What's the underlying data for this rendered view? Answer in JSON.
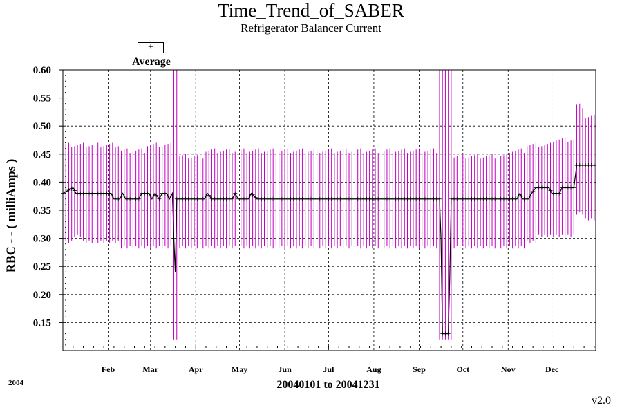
{
  "chart_data": {
    "type": "line",
    "title": "Time_Trend_of_SABER",
    "subtitle": "Refrigerator Balancer Current",
    "xlabel": "20040101 to 20041231",
    "ylabel": "RBC  - - ( milliAmps )",
    "year_label": "2004",
    "version": "v2.0",
    "legend": [
      {
        "name": "Average",
        "marker": "+",
        "placement": "top-left"
      }
    ],
    "ylim": [
      0.1,
      0.6
    ],
    "y_ticks": [
      "0.15",
      "0.20",
      "0.25",
      "0.30",
      "0.35",
      "0.40",
      "0.45",
      "0.50",
      "0.55",
      "0.60"
    ],
    "x_day_range": [
      1,
      366
    ],
    "x_ticks": [
      {
        "label": "Feb",
        "day": 32
      },
      {
        "label": "Mar",
        "day": 61
      },
      {
        "label": "Apr",
        "day": 92
      },
      {
        "label": "May",
        "day": 122
      },
      {
        "label": "Jun",
        "day": 153
      },
      {
        "label": "Jul",
        "day": 183
      },
      {
        "label": "Aug",
        "day": 214
      },
      {
        "label": "Sep",
        "day": 245
      },
      {
        "label": "Oct",
        "day": 275
      },
      {
        "label": "Nov",
        "day": 306
      },
      {
        "label": "Dec",
        "day": 336
      }
    ],
    "grid": true,
    "colors": {
      "range": "#c000c0",
      "average": "#000000",
      "grid": "#000000"
    },
    "series": [
      {
        "name": "Average",
        "points": [
          [
            1,
            0.38
          ],
          [
            8,
            0.39
          ],
          [
            10,
            0.38
          ],
          [
            34,
            0.38
          ],
          [
            36,
            0.37
          ],
          [
            40,
            0.37
          ],
          [
            42,
            0.38
          ],
          [
            44,
            0.37
          ],
          [
            53,
            0.37
          ],
          [
            55,
            0.38
          ],
          [
            60,
            0.38
          ],
          [
            62,
            0.37
          ],
          [
            64,
            0.38
          ],
          [
            67,
            0.37
          ],
          [
            69,
            0.38
          ],
          [
            72,
            0.38
          ],
          [
            74,
            0.37
          ],
          [
            76,
            0.38
          ],
          [
            77,
            0.3
          ],
          [
            78,
            0.24
          ],
          [
            79,
            0.37
          ],
          [
            98,
            0.37
          ],
          [
            100,
            0.38
          ],
          [
            103,
            0.37
          ],
          [
            117,
            0.37
          ],
          [
            119,
            0.38
          ],
          [
            121,
            0.37
          ],
          [
            128,
            0.37
          ],
          [
            130,
            0.38
          ],
          [
            134,
            0.37
          ],
          [
            259,
            0.37
          ],
          [
            260,
            0.3
          ],
          [
            261,
            0.13
          ],
          [
            265,
            0.13
          ],
          [
            266,
            0.23
          ],
          [
            267,
            0.37
          ],
          [
            312,
            0.37
          ],
          [
            314,
            0.38
          ],
          [
            316,
            0.37
          ],
          [
            320,
            0.37
          ],
          [
            322,
            0.38
          ],
          [
            325,
            0.39
          ],
          [
            334,
            0.39
          ],
          [
            336,
            0.38
          ],
          [
            341,
            0.38
          ],
          [
            343,
            0.39
          ],
          [
            351,
            0.39
          ],
          [
            353,
            0.43
          ],
          [
            366,
            0.43
          ]
        ]
      },
      {
        "name": "Range",
        "min_max_periods": [
          {
            "from": 1,
            "to": 3,
            "min": 0.3,
            "max": 0.47
          },
          {
            "from": 3,
            "to": 8,
            "min": 0.29,
            "max": 0.47
          },
          {
            "from": 8,
            "to": 14,
            "min": 0.3,
            "max": 0.47
          },
          {
            "from": 14,
            "to": 25,
            "min": 0.29,
            "max": 0.47
          },
          {
            "from": 25,
            "to": 40,
            "min": 0.29,
            "max": 0.47
          },
          {
            "from": 40,
            "to": 58,
            "min": 0.28,
            "max": 0.46
          },
          {
            "from": 58,
            "to": 76,
            "min": 0.28,
            "max": 0.47
          },
          {
            "from": 76,
            "to": 80,
            "min": 0.12,
            "max": 0.6
          },
          {
            "from": 80,
            "to": 98,
            "min": 0.28,
            "max": 0.45
          },
          {
            "from": 98,
            "to": 108,
            "min": 0.28,
            "max": 0.46
          },
          {
            "from": 108,
            "to": 140,
            "min": 0.28,
            "max": 0.46
          },
          {
            "from": 140,
            "to": 200,
            "min": 0.28,
            "max": 0.46
          },
          {
            "from": 200,
            "to": 258,
            "min": 0.28,
            "max": 0.46
          },
          {
            "from": 258,
            "to": 268,
            "min": 0.12,
            "max": 0.6
          },
          {
            "from": 268,
            "to": 290,
            "min": 0.28,
            "max": 0.45
          },
          {
            "from": 290,
            "to": 307,
            "min": 0.28,
            "max": 0.45
          },
          {
            "from": 307,
            "to": 318,
            "min": 0.28,
            "max": 0.46
          },
          {
            "from": 318,
            "to": 326,
            "min": 0.29,
            "max": 0.47
          },
          {
            "from": 326,
            "to": 336,
            "min": 0.3,
            "max": 0.47
          },
          {
            "from": 336,
            "to": 352,
            "min": 0.3,
            "max": 0.48
          },
          {
            "from": 352,
            "to": 358,
            "min": 0.34,
            "max": 0.54
          },
          {
            "from": 358,
            "to": 366,
            "min": 0.33,
            "max": 0.52
          }
        ]
      }
    ]
  }
}
